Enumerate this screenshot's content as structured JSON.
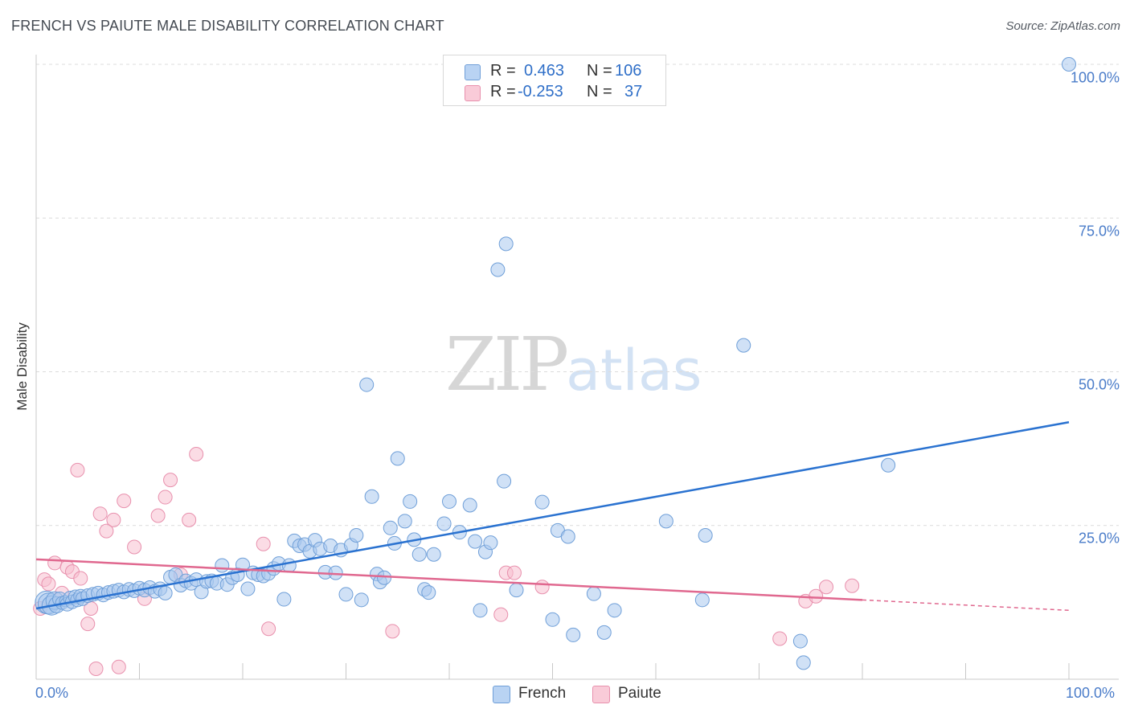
{
  "title": "FRENCH VS PAIUTE MALE DISABILITY CORRELATION CHART",
  "source": "Source: ZipAtlas.com",
  "watermark": {
    "zip": "ZIP",
    "atlas": "atlas"
  },
  "legend": {
    "rows": [
      {
        "r_label": "R =",
        "r_value": "0.463",
        "n_label": "N =",
        "n_value": "106"
      },
      {
        "r_label": "R =",
        "r_value": "-0.253",
        "n_label": "N =",
        "n_value": "37"
      }
    ]
  },
  "colors": {
    "french_fill": "#a9c8ef",
    "french_stroke": "#6f9fd8",
    "french_line": "#2a72d0",
    "paiute_fill": "#f7bfd0",
    "paiute_stroke": "#e890ad",
    "paiute_line": "#e0688f",
    "grid": "#dcdcdc",
    "axis_text": "#4a7cc9"
  },
  "chart_data": {
    "type": "scatter",
    "title": "FRENCH VS PAIUTE MALE DISABILITY CORRELATION CHART",
    "xlabel": "",
    "ylabel": "Male Disability",
    "xlim": [
      0,
      100
    ],
    "ylim": [
      0,
      100
    ],
    "x_tick_labels": [
      "0.0%",
      "100.0%"
    ],
    "y_tick_labels": [
      "25.0%",
      "50.0%",
      "75.0%",
      "100.0%"
    ],
    "y_ticks": [
      25,
      50,
      75,
      100
    ],
    "grid": true,
    "series": [
      {
        "name": "French",
        "r": 0.463,
        "n": 106,
        "trend": {
          "x": [
            0,
            100
          ],
          "y": [
            11.5,
            41.8
          ]
        },
        "points": [
          {
            "x": 1.0,
            "y": 12.5
          },
          {
            "x": 1.2,
            "y": 12.3
          },
          {
            "x": 1.5,
            "y": 12.0
          },
          {
            "x": 1.8,
            "y": 12.8
          },
          {
            "x": 2.0,
            "y": 12.1
          },
          {
            "x": 2.3,
            "y": 13.0
          },
          {
            "x": 2.5,
            "y": 12.4
          },
          {
            "x": 2.8,
            "y": 12.7
          },
          {
            "x": 3.0,
            "y": 12.2
          },
          {
            "x": 3.3,
            "y": 13.2
          },
          {
            "x": 3.5,
            "y": 12.6
          },
          {
            "x": 3.8,
            "y": 13.4
          },
          {
            "x": 4.0,
            "y": 12.9
          },
          {
            "x": 4.3,
            "y": 13.5
          },
          {
            "x": 4.5,
            "y": 13.1
          },
          {
            "x": 5.0,
            "y": 13.6
          },
          {
            "x": 5.5,
            "y": 13.8
          },
          {
            "x": 6.0,
            "y": 14.0
          },
          {
            "x": 6.5,
            "y": 13.7
          },
          {
            "x": 7.0,
            "y": 14.1
          },
          {
            "x": 7.5,
            "y": 14.3
          },
          {
            "x": 8.0,
            "y": 14.5
          },
          {
            "x": 8.5,
            "y": 14.2
          },
          {
            "x": 9.0,
            "y": 14.6
          },
          {
            "x": 9.5,
            "y": 14.4
          },
          {
            "x": 10.0,
            "y": 14.8
          },
          {
            "x": 10.5,
            "y": 14.5
          },
          {
            "x": 11.0,
            "y": 14.9
          },
          {
            "x": 11.5,
            "y": 14.3
          },
          {
            "x": 12.0,
            "y": 14.7
          },
          {
            "x": 12.5,
            "y": 14.0
          },
          {
            "x": 13.0,
            "y": 16.6
          },
          {
            "x": 13.5,
            "y": 17.0
          },
          {
            "x": 14.0,
            "y": 15.3
          },
          {
            "x": 14.5,
            "y": 16.0
          },
          {
            "x": 15.0,
            "y": 15.6
          },
          {
            "x": 15.5,
            "y": 16.2
          },
          {
            "x": 16.0,
            "y": 14.2
          },
          {
            "x": 16.5,
            "y": 15.9
          },
          {
            "x": 17.0,
            "y": 16.0
          },
          {
            "x": 17.5,
            "y": 15.6
          },
          {
            "x": 18.0,
            "y": 18.5
          },
          {
            "x": 18.5,
            "y": 15.4
          },
          {
            "x": 19.0,
            "y": 16.5
          },
          {
            "x": 19.5,
            "y": 17.0
          },
          {
            "x": 20.0,
            "y": 18.6
          },
          {
            "x": 20.5,
            "y": 14.7
          },
          {
            "x": 21.0,
            "y": 17.3
          },
          {
            "x": 21.5,
            "y": 17.0
          },
          {
            "x": 22.0,
            "y": 16.8
          },
          {
            "x": 22.5,
            "y": 17.2
          },
          {
            "x": 23.0,
            "y": 18.0
          },
          {
            "x": 23.5,
            "y": 18.8
          },
          {
            "x": 24.0,
            "y": 13.0
          },
          {
            "x": 24.5,
            "y": 18.5
          },
          {
            "x": 25.0,
            "y": 22.5
          },
          {
            "x": 25.5,
            "y": 21.7
          },
          {
            "x": 26.0,
            "y": 21.9
          },
          {
            "x": 26.5,
            "y": 20.8
          },
          {
            "x": 27.0,
            "y": 22.6
          },
          {
            "x": 27.5,
            "y": 21.2
          },
          {
            "x": 28.0,
            "y": 17.4
          },
          {
            "x": 28.5,
            "y": 21.7
          },
          {
            "x": 29.0,
            "y": 17.3
          },
          {
            "x": 29.5,
            "y": 21.0
          },
          {
            "x": 30.0,
            "y": 13.8
          },
          {
            "x": 30.5,
            "y": 21.8
          },
          {
            "x": 31.0,
            "y": 23.4
          },
          {
            "x": 31.5,
            "y": 12.9
          },
          {
            "x": 32.0,
            "y": 47.9
          },
          {
            "x": 32.5,
            "y": 29.7
          },
          {
            "x": 33.0,
            "y": 17.1
          },
          {
            "x": 33.3,
            "y": 15.8
          },
          {
            "x": 33.7,
            "y": 16.5
          },
          {
            "x": 34.3,
            "y": 24.6
          },
          {
            "x": 34.7,
            "y": 22.1
          },
          {
            "x": 35.0,
            "y": 35.9
          },
          {
            "x": 35.7,
            "y": 25.7
          },
          {
            "x": 36.2,
            "y": 28.9
          },
          {
            "x": 36.6,
            "y": 22.7
          },
          {
            "x": 37.1,
            "y": 20.3
          },
          {
            "x": 37.6,
            "y": 14.6
          },
          {
            "x": 38.0,
            "y": 14.1
          },
          {
            "x": 38.5,
            "y": 20.3
          },
          {
            "x": 39.5,
            "y": 25.3
          },
          {
            "x": 40.0,
            "y": 28.9
          },
          {
            "x": 41.0,
            "y": 23.9
          },
          {
            "x": 42.0,
            "y": 28.3
          },
          {
            "x": 42.5,
            "y": 22.4
          },
          {
            "x": 43.0,
            "y": 11.2
          },
          {
            "x": 43.5,
            "y": 20.7
          },
          {
            "x": 44.0,
            "y": 22.2
          },
          {
            "x": 44.7,
            "y": 66.6
          },
          {
            "x": 45.3,
            "y": 32.2
          },
          {
            "x": 45.5,
            "y": 70.8
          },
          {
            "x": 46.5,
            "y": 14.5
          },
          {
            "x": 49.0,
            "y": 28.8
          },
          {
            "x": 50.0,
            "y": 9.7
          },
          {
            "x": 50.5,
            "y": 24.2
          },
          {
            "x": 51.5,
            "y": 23.2
          },
          {
            "x": 52.0,
            "y": 7.2
          },
          {
            "x": 54.0,
            "y": 13.9
          },
          {
            "x": 55.0,
            "y": 7.6
          },
          {
            "x": 56.0,
            "y": 11.2
          },
          {
            "x": 61.0,
            "y": 25.7
          },
          {
            "x": 64.5,
            "y": 12.9
          },
          {
            "x": 64.8,
            "y": 23.4
          },
          {
            "x": 68.5,
            "y": 54.3
          },
          {
            "x": 74.0,
            "y": 6.2
          },
          {
            "x": 74.3,
            "y": 2.7
          },
          {
            "x": 82.5,
            "y": 34.8
          },
          {
            "x": 100.0,
            "y": 100.0
          }
        ]
      },
      {
        "name": "Paiute",
        "r": -0.253,
        "n": 37,
        "trend": {
          "x": [
            0,
            80
          ],
          "y": [
            19.5,
            12.9
          ]
        },
        "trend_dashed": {
          "x": [
            80,
            100
          ],
          "y": [
            12.9,
            11.2
          ]
        },
        "points": [
          {
            "x": 0.4,
            "y": 11.5
          },
          {
            "x": 0.8,
            "y": 16.2
          },
          {
            "x": 1.2,
            "y": 15.5
          },
          {
            "x": 1.8,
            "y": 18.9
          },
          {
            "x": 2.5,
            "y": 14.0
          },
          {
            "x": 3.0,
            "y": 18.2
          },
          {
            "x": 3.5,
            "y": 17.5
          },
          {
            "x": 4.0,
            "y": 34.0
          },
          {
            "x": 4.3,
            "y": 16.4
          },
          {
            "x": 5.0,
            "y": 9.0
          },
          {
            "x": 5.3,
            "y": 11.5
          },
          {
            "x": 5.8,
            "y": 1.7
          },
          {
            "x": 6.2,
            "y": 26.9
          },
          {
            "x": 6.8,
            "y": 24.1
          },
          {
            "x": 7.5,
            "y": 25.9
          },
          {
            "x": 8.0,
            "y": 2.0
          },
          {
            "x": 8.5,
            "y": 29.0
          },
          {
            "x": 9.5,
            "y": 21.5
          },
          {
            "x": 10.5,
            "y": 13.1
          },
          {
            "x": 11.8,
            "y": 26.6
          },
          {
            "x": 12.5,
            "y": 29.6
          },
          {
            "x": 13.0,
            "y": 32.4
          },
          {
            "x": 14.0,
            "y": 17.0
          },
          {
            "x": 14.8,
            "y": 25.9
          },
          {
            "x": 15.5,
            "y": 36.6
          },
          {
            "x": 22.0,
            "y": 22.0
          },
          {
            "x": 22.5,
            "y": 8.2
          },
          {
            "x": 34.5,
            "y": 7.8
          },
          {
            "x": 45.0,
            "y": 10.5
          },
          {
            "x": 45.5,
            "y": 17.3
          },
          {
            "x": 46.3,
            "y": 17.3
          },
          {
            "x": 49.0,
            "y": 15.0
          },
          {
            "x": 72.0,
            "y": 6.6
          },
          {
            "x": 74.5,
            "y": 12.7
          },
          {
            "x": 75.5,
            "y": 13.5
          },
          {
            "x": 76.5,
            "y": 15.0
          },
          {
            "x": 79.0,
            "y": 15.2
          }
        ]
      }
    ],
    "legend_position": "top-center"
  },
  "bottom_legend": {
    "french": "French",
    "paiute": "Paiute"
  }
}
